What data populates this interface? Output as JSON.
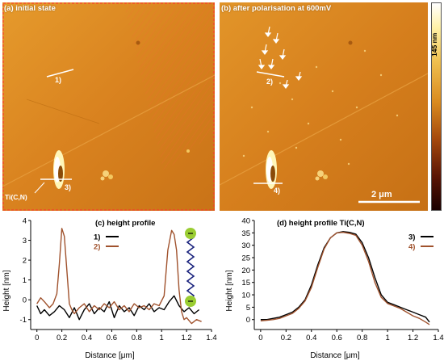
{
  "panels": {
    "a": {
      "label": "(a) initial state",
      "line_label": "1)",
      "ti_line_label": "3)",
      "inclusion_label": "Ti(C,N)"
    },
    "b": {
      "label": "(b) after polarisation at 600mV",
      "line_label": "2)",
      "ti_line_label": "4)",
      "scale_bar": "2 μm"
    }
  },
  "colorbar": {
    "label": "145 nm"
  },
  "colors": {
    "afm_base": "#d9821f",
    "series_black": "#000000",
    "series_brown": "#a0522d",
    "molecule_green": "#9acd32",
    "molecule_chain": "#1a237e"
  },
  "icons": {
    "molecule": "green-ended-chain-molecule-icon",
    "arrows": "white-down-arrow-icon"
  },
  "chart_data": [
    {
      "type": "line",
      "title": "(c) height profile",
      "xlabel": "Distance [μm]",
      "ylabel": "Height [nm]",
      "xlim": [
        -0.05,
        1.4
      ],
      "ylim": [
        -1.5,
        4
      ],
      "xticks": [
        "0",
        "0.2",
        "0.4",
        "0.6",
        "0.8",
        "1",
        "1.2",
        "1.4"
      ],
      "yticks": [
        "-1",
        "0",
        "1",
        "2",
        "3",
        "4"
      ],
      "legend": "top-center",
      "series": [
        {
          "name": "1)",
          "color": "#000000",
          "x": [
            0,
            0.03,
            0.06,
            0.1,
            0.14,
            0.18,
            0.22,
            0.26,
            0.3,
            0.34,
            0.38,
            0.42,
            0.46,
            0.5,
            0.54,
            0.58,
            0.62,
            0.66,
            0.7,
            0.74,
            0.78,
            0.82,
            0.86,
            0.9,
            0.94,
            0.98,
            1.02,
            1.06,
            1.1,
            1.14,
            1.18,
            1.22,
            1.26,
            1.3
          ],
          "y": [
            -0.3,
            -0.7,
            -0.5,
            -0.8,
            -0.6,
            -0.3,
            -0.5,
            -0.9,
            -0.4,
            -1.0,
            -0.5,
            -0.2,
            -0.7,
            -0.4,
            -0.6,
            -0.1,
            -0.9,
            -0.3,
            -0.6,
            -0.4,
            -0.8,
            -0.3,
            -0.5,
            -0.2,
            -0.6,
            -0.4,
            -0.5,
            -0.1,
            0.2,
            -0.3,
            -0.6,
            -0.4,
            -0.7,
            -0.5
          ]
        },
        {
          "name": "2)",
          "color": "#a0522d",
          "x": [
            0,
            0.03,
            0.06,
            0.1,
            0.13,
            0.16,
            0.18,
            0.2,
            0.22,
            0.24,
            0.26,
            0.28,
            0.3,
            0.34,
            0.38,
            0.42,
            0.46,
            0.5,
            0.54,
            0.58,
            0.62,
            0.66,
            0.7,
            0.74,
            0.78,
            0.82,
            0.86,
            0.9,
            0.94,
            0.98,
            1.02,
            1.05,
            1.08,
            1.1,
            1.12,
            1.14,
            1.16,
            1.18,
            1.2,
            1.24,
            1.28,
            1.32
          ],
          "y": [
            -0.2,
            0.1,
            -0.1,
            -0.4,
            -0.2,
            0.3,
            1.8,
            3.6,
            3.2,
            1.5,
            -0.2,
            -0.5,
            -0.7,
            -0.4,
            -0.2,
            -0.6,
            -0.3,
            -0.5,
            -0.2,
            -0.4,
            -0.1,
            -0.5,
            -0.3,
            -0.6,
            -0.2,
            -0.4,
            -0.3,
            -0.5,
            -0.2,
            -0.3,
            0.2,
            2.5,
            3.5,
            3.3,
            2.5,
            0.5,
            -0.6,
            -1.0,
            -0.9,
            -1.2,
            -1.0,
            -1.1
          ]
        }
      ]
    },
    {
      "type": "line",
      "title": "(d) height profile Ti(C,N)",
      "xlabel": "Distance [μm]",
      "ylabel": "Height [nm]",
      "xlim": [
        -0.05,
        1.4
      ],
      "ylim": [
        -4,
        40
      ],
      "xticks": [
        "0",
        "0.2",
        "0.4",
        "0.6",
        "0.8",
        "1",
        "1.2",
        "1.4"
      ],
      "yticks": [
        "0",
        "5",
        "10",
        "15",
        "20",
        "25",
        "30",
        "35",
        "40"
      ],
      "legend": "right",
      "series": [
        {
          "name": "3)",
          "color": "#000000",
          "x": [
            0,
            0.05,
            0.1,
            0.15,
            0.2,
            0.25,
            0.3,
            0.35,
            0.4,
            0.45,
            0.5,
            0.55,
            0.6,
            0.65,
            0.7,
            0.75,
            0.8,
            0.85,
            0.9,
            0.95,
            1.0,
            1.05,
            1.1,
            1.15,
            1.2,
            1.25,
            1.3,
            1.33
          ],
          "y": [
            0,
            0,
            0.5,
            1,
            2,
            3,
            5,
            8,
            14,
            22,
            29,
            33,
            35,
            35.5,
            35.2,
            34.5,
            31,
            25,
            17,
            10,
            7,
            6,
            5,
            4,
            3,
            2,
            1,
            -1
          ]
        },
        {
          "name": "4)",
          "color": "#a0522d",
          "x": [
            0,
            0.05,
            0.1,
            0.15,
            0.2,
            0.25,
            0.3,
            0.35,
            0.4,
            0.45,
            0.5,
            0.55,
            0.6,
            0.65,
            0.7,
            0.75,
            0.8,
            0.85,
            0.9,
            0.95,
            1.0,
            1.05,
            1.1,
            1.15,
            1.2,
            1.25,
            1.3,
            1.33
          ],
          "y": [
            -0.5,
            -0.3,
            0,
            0.5,
            1.5,
            2.5,
            4.5,
            7.5,
            13,
            21,
            28.5,
            33,
            35,
            35.2,
            34.8,
            34,
            30,
            23.5,
            15,
            9,
            6.5,
            5.5,
            4.5,
            3,
            1.5,
            0.5,
            -1,
            -2
          ]
        }
      ]
    }
  ]
}
